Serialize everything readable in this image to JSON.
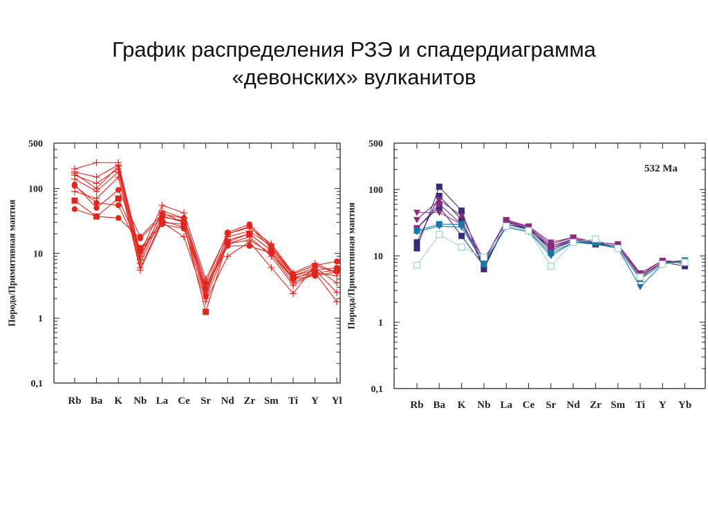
{
  "slide": {
    "title_line1": "График распределения РЗЭ и спадердиаграмма",
    "title_line2": "«девонских» вулканитов"
  },
  "chart_data": [
    {
      "type": "line",
      "title": "",
      "ylabel": "Порода/Примитивная мантия",
      "yscale": "log",
      "ylim": [
        0.1,
        500
      ],
      "yticks": [
        "500",
        "100",
        "10",
        "1",
        "0,1"
      ],
      "ytick_values": [
        500,
        100,
        10,
        1,
        0.1
      ],
      "categories": [
        "Rb",
        "Ba",
        "K",
        "Nb",
        "La",
        "Ce",
        "Sr",
        "Nd",
        "Zr",
        "Sm",
        "Ti",
        "Y",
        "Yl"
      ],
      "series": [
        {
          "name": "s1",
          "marker": "plus",
          "color": "#e0261f",
          "values": [
            200,
            250,
            250,
            10,
            55,
            42,
            4,
            20,
            25,
            14,
            5,
            7,
            5
          ]
        },
        {
          "name": "s2",
          "marker": "plus",
          "color": "#e0261f",
          "values": [
            180,
            150,
            230,
            8,
            45,
            35,
            3,
            18,
            22,
            13,
            4.5,
            6,
            3.5
          ]
        },
        {
          "name": "s3",
          "marker": "plus",
          "color": "#e0261f",
          "values": [
            160,
            120,
            200,
            7,
            38,
            30,
            2.5,
            16,
            20,
            11,
            4,
            5.5,
            2.5
          ]
        },
        {
          "name": "s4",
          "marker": "plus",
          "color": "#e0261f",
          "values": [
            140,
            90,
            180,
            6,
            32,
            25,
            2,
            14,
            18,
            9,
            3.2,
            5,
            1.8
          ]
        },
        {
          "name": "s5",
          "marker": "plus",
          "color": "#e0261f",
          "values": [
            90,
            70,
            150,
            5.5,
            30,
            18,
            1.8,
            9,
            15,
            6,
            2.4,
            6.5,
            5
          ]
        },
        {
          "name": "s6",
          "marker": "circle",
          "color": "#e0261f",
          "values": [
            115,
            50,
            95,
            18,
            40,
            35,
            3.5,
            21,
            28,
            13,
            4.8,
            6.5,
            7.5
          ]
        },
        {
          "name": "s7",
          "marker": "circle",
          "color": "#e0261f",
          "values": [
            48,
            37,
            35,
            17,
            36,
            32,
            2.2,
            20,
            26,
            12,
            4.5,
            5.5,
            6
          ]
        },
        {
          "name": "s8",
          "marker": "square",
          "color": "#e0261f",
          "values": [
            65,
            37,
            70,
            12,
            30,
            28,
            1.25,
            15,
            20,
            11,
            4.2,
            5,
            5.5
          ]
        },
        {
          "name": "s9",
          "marker": "circle",
          "color": "#e0261f",
          "values": [
            110,
            60,
            55,
            11,
            28,
            24,
            2.8,
            13,
            13,
            10,
            4,
            4.5,
            5.2
          ]
        },
        {
          "name": "s10",
          "marker": "plus",
          "color": "#e0261f",
          "values": [
            170,
            100,
            220,
            9,
            42,
            30,
            3,
            14,
            16,
            10,
            3.5,
            5,
            4.5
          ]
        }
      ]
    },
    {
      "type": "line",
      "title": "",
      "annotation": "532 Ma",
      "ylabel": "Порода/Примитивная мантия",
      "yscale": "log",
      "ylim": [
        0.1,
        500
      ],
      "yticks": [
        "500",
        "100",
        "10",
        "1",
        "0,1"
      ],
      "ytick_values": [
        500,
        100,
        10,
        1,
        0.1
      ],
      "categories": [
        "Rb",
        "Ba",
        "K",
        "Nb",
        "La",
        "Ce",
        "Sr",
        "Nd",
        "Zr",
        "Sm",
        "Ti",
        "Y",
        "Yb"
      ],
      "series": [
        {
          "name": "s1",
          "marker": "square",
          "color": "#3b2a78",
          "values": [
            13,
            110,
            48,
            6.3,
            32,
            26,
            12,
            17,
            15,
            14,
            4.6,
            8,
            7
          ]
        },
        {
          "name": "s2",
          "marker": "square",
          "color": "#3b2a78",
          "values": [
            16,
            80,
            35,
            6.5,
            30,
            25,
            13,
            17,
            15,
            14,
            5,
            8,
            8
          ]
        },
        {
          "name": "s3",
          "marker": "square",
          "color": "#3b2a78",
          "values": [
            26,
            55,
            20,
            7,
            30,
            26,
            14,
            18,
            15,
            14,
            4.8,
            8,
            8.5
          ]
        },
        {
          "name": "s4",
          "marker": "triangle-down",
          "color": "#8e2a7e",
          "values": [
            45,
            45,
            30,
            8,
            34,
            27,
            15,
            19,
            16,
            15,
            5.2,
            8.5,
            8
          ]
        },
        {
          "name": "s5",
          "marker": "triangle-down",
          "color": "#8e2a7e",
          "values": [
            35,
            70,
            40,
            8.5,
            35,
            28,
            16,
            19,
            16,
            15,
            5.5,
            8.5,
            7.5
          ]
        },
        {
          "name": "s6",
          "marker": "square",
          "color": "#8e2a7e",
          "values": [
            26,
            60,
            30,
            9,
            33,
            27,
            13,
            18,
            16,
            14,
            5,
            8,
            8
          ]
        },
        {
          "name": "s7",
          "marker": "square",
          "color": "#1a78a8",
          "values": [
            24,
            30,
            30,
            7.5,
            28,
            24,
            11,
            16,
            16,
            13,
            4.5,
            7.5,
            8.5
          ]
        },
        {
          "name": "s8",
          "marker": "triangle-down",
          "color": "#1a78a8",
          "values": [
            23,
            28,
            27,
            7.8,
            27,
            23,
            10,
            16,
            15,
            13,
            3.4,
            7.5,
            8
          ]
        },
        {
          "name": "s9",
          "marker": "open-square",
          "color": "#9fd4cc",
          "values": [
            7.2,
            21,
            13.5,
            9.5,
            28,
            24,
            7,
            16,
            18,
            13,
            4.8,
            7.5,
            8
          ]
        }
      ]
    }
  ]
}
